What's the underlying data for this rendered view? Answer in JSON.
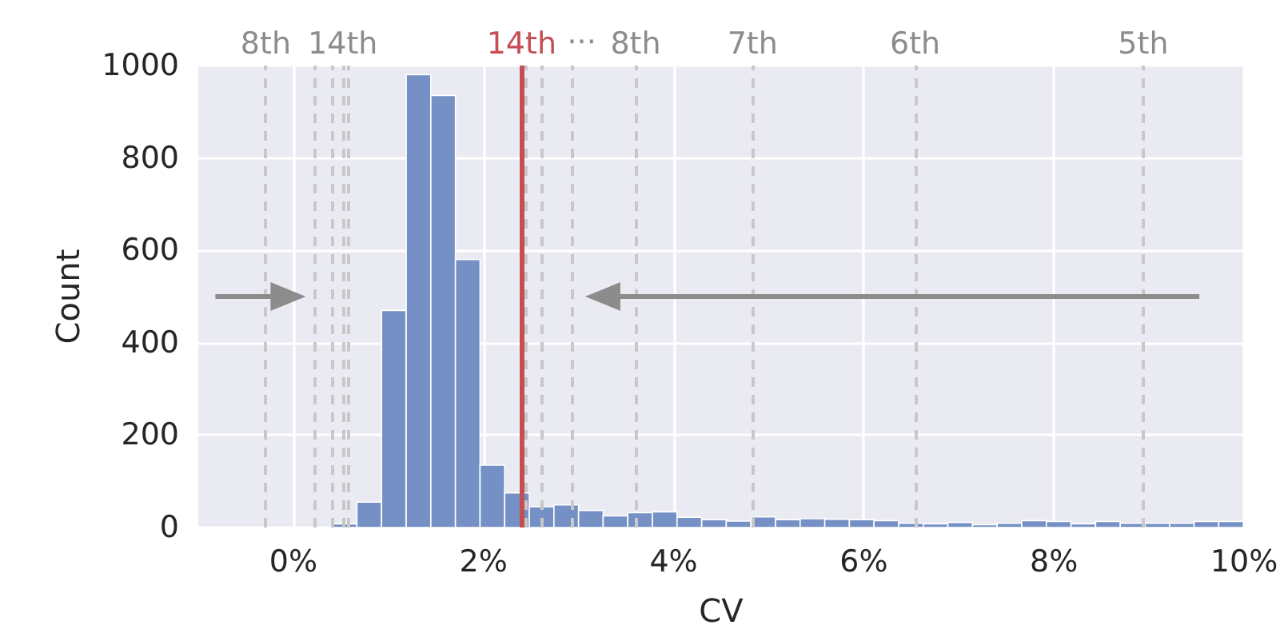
{
  "chart_data": {
    "type": "histogram",
    "xlabel": "CV",
    "ylabel": "Count",
    "color": "#7590c4",
    "bins": [
      0.41,
      0.669,
      0.928,
      1.187,
      1.446,
      1.705,
      1.964,
      2.223,
      2.482,
      2.741,
      3.0,
      3.259,
      3.518,
      3.777,
      4.036,
      4.295,
      4.554,
      4.813,
      5.072,
      5.331,
      5.59,
      5.849,
      6.108,
      6.367,
      6.626,
      6.885,
      7.144,
      7.403,
      7.662,
      7.921,
      8.18,
      8.439,
      8.698,
      8.957,
      9.216,
      9.475,
      9.734,
      9.993
    ],
    "values": [
      8,
      55,
      470,
      980,
      935,
      580,
      135,
      75,
      45,
      49,
      37,
      25,
      32,
      34,
      22,
      17,
      14,
      23,
      17,
      19,
      18,
      17,
      15,
      9,
      8,
      11,
      6,
      9,
      15,
      13,
      8,
      13,
      9,
      9,
      9,
      13,
      13
    ],
    "xlim": [
      -1,
      10
    ],
    "xticks": [
      {
        "value": 0,
        "label": "0%"
      },
      {
        "value": 2,
        "label": "2%"
      },
      {
        "value": 4,
        "label": "4%"
      },
      {
        "value": 6,
        "label": "6%"
      },
      {
        "value": 8,
        "label": "8%"
      },
      {
        "value": 10,
        "label": "10%"
      }
    ],
    "ylim": [
      0,
      1000
    ],
    "yticks": [
      0,
      200,
      400,
      600,
      800,
      1000
    ],
    "grid": true,
    "ref_lines": [
      {
        "axis": "x",
        "value": -0.29,
        "label": "8th",
        "color": "#c8c8c8",
        "line_style": "dashed"
      },
      {
        "axis": "x",
        "value": 0.22,
        "label": null,
        "color": "#c8c8c8",
        "line_style": "dashed"
      },
      {
        "axis": "x",
        "value": 0.41,
        "label": null,
        "color": "#c8c8c8",
        "line_style": "dashed"
      },
      {
        "axis": "x",
        "value": 0.52,
        "label": "14th",
        "color": "#c8c8c8",
        "line_style": "dashed"
      },
      {
        "axis": "x",
        "value": 0.58,
        "label": null,
        "color": "#c8c8c8",
        "line_style": "dashed"
      },
      {
        "axis": "x",
        "value": 2.4,
        "label": "14th",
        "color": "#c44e52",
        "line_style": "solid"
      },
      {
        "axis": "x",
        "value": 2.45,
        "label": null,
        "color": "#c8c8c8",
        "line_style": "dashed"
      },
      {
        "axis": "x",
        "value": 2.62,
        "label": null,
        "color": "#c8c8c8",
        "line_style": "dashed"
      },
      {
        "axis": "x",
        "value": 2.93,
        "label": null,
        "color": "#c8c8c8",
        "line_style": "dashed"
      },
      {
        "axis": "x",
        "value": 3.6,
        "label": "8th",
        "color": "#c8c8c8",
        "line_style": "dashed"
      },
      {
        "axis": "x",
        "value": 4.83,
        "label": "7th",
        "color": "#c8c8c8",
        "line_style": "dashed"
      },
      {
        "axis": "x",
        "value": 6.54,
        "label": "6th",
        "color": "#c8c8c8",
        "line_style": "dashed"
      },
      {
        "axis": "x",
        "value": 8.94,
        "label": "5th",
        "color": "#c8c8c8",
        "line_style": "dashed"
      }
    ],
    "annotations": [
      "···"
    ]
  }
}
